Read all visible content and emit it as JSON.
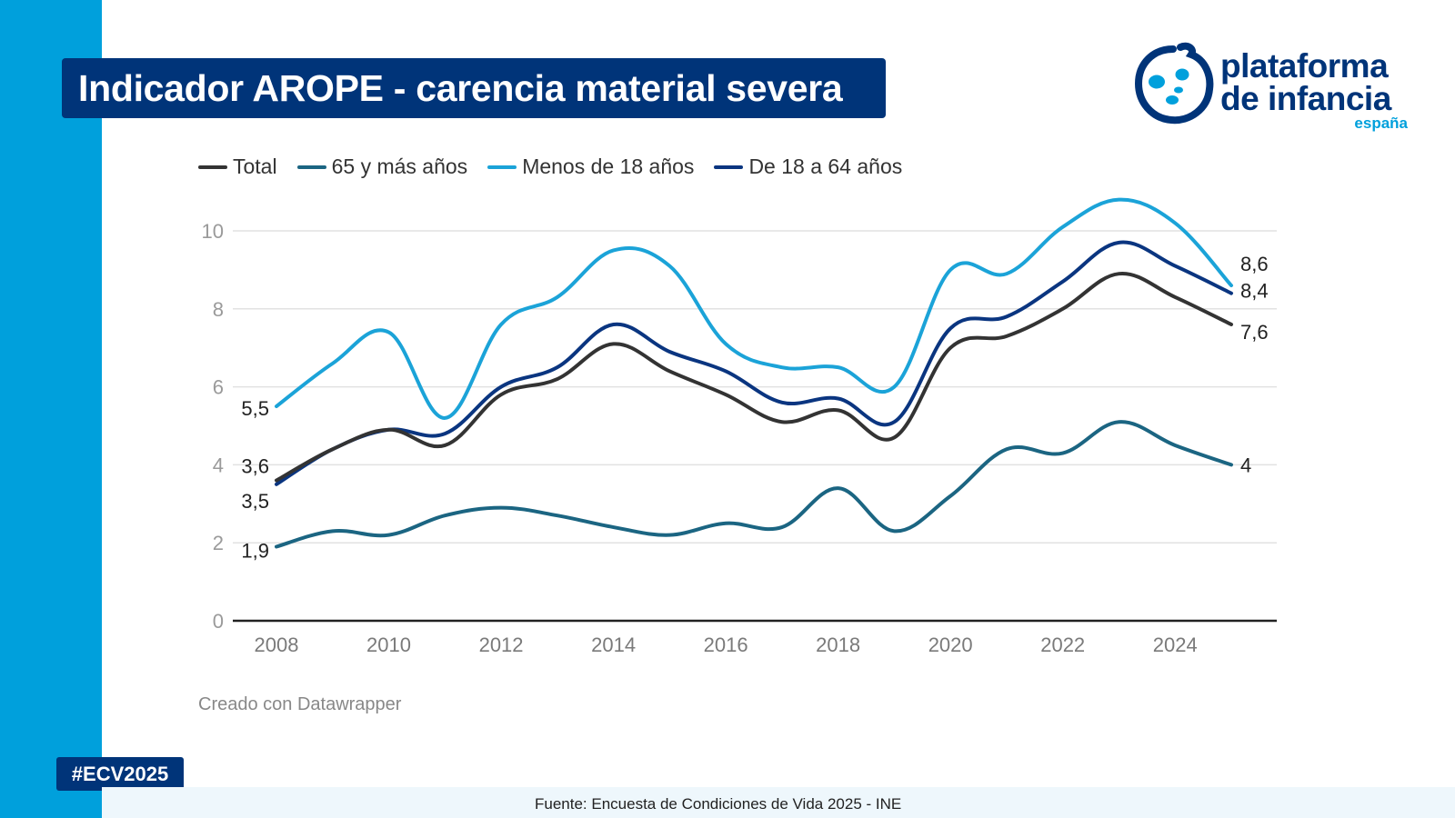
{
  "header": {
    "title": "Indicador AROPE - carencia material severa"
  },
  "logo": {
    "line1": "plataforma",
    "line2": "de infancia",
    "line3": "españa",
    "icon": "plataforma-infancia-logo-icon",
    "colors": {
      "navy": "#003479",
      "cyan": "#00a0dc"
    }
  },
  "footer": {
    "credit": "Creado con Datawrapper",
    "hashtag": "#ECV2025",
    "source": "Fuente: Encuesta de Condiciones de Vida 2025 - INE"
  },
  "chart_data": {
    "type": "line",
    "title": "Indicador AROPE - carencia material severa",
    "xlabel": "",
    "ylabel": "",
    "x": [
      2008,
      2009,
      2010,
      2011,
      2012,
      2013,
      2014,
      2015,
      2016,
      2017,
      2018,
      2019,
      2020,
      2021,
      2022,
      2023,
      2024,
      2025
    ],
    "xticks": [
      "2008",
      "2010",
      "2012",
      "2014",
      "2016",
      "2018",
      "2020",
      "2022",
      "2024"
    ],
    "yticks": [
      "0",
      "2",
      "4",
      "6",
      "8",
      "10"
    ],
    "ylim": [
      0,
      10
    ],
    "xlim": [
      2008,
      2025
    ],
    "grid": true,
    "legend_position": "top-left",
    "series": [
      {
        "name": "Total",
        "color": "#333333",
        "values": [
          3.6,
          4.4,
          4.9,
          4.5,
          5.8,
          6.2,
          7.1,
          6.4,
          5.8,
          5.1,
          5.4,
          4.7,
          7.0,
          7.3,
          8.0,
          8.9,
          8.3,
          7.6
        ],
        "start_label": "3,6",
        "end_label": "7,6"
      },
      {
        "name": "65 y más años",
        "color": "#1b6582",
        "values": [
          1.9,
          2.3,
          2.2,
          2.7,
          2.9,
          2.7,
          2.4,
          2.2,
          2.5,
          2.4,
          3.4,
          2.3,
          3.2,
          4.4,
          4.3,
          5.1,
          4.5,
          4.0
        ],
        "start_label": "1,9",
        "end_label": "4"
      },
      {
        "name": "Menos de 18 años",
        "color": "#1ba3d8",
        "values": [
          5.5,
          6.6,
          7.4,
          5.2,
          7.6,
          8.3,
          9.5,
          9.1,
          7.1,
          6.5,
          6.5,
          6.0,
          9.0,
          8.9,
          10.1,
          10.8,
          10.2,
          8.6
        ],
        "start_label": "5,5",
        "end_label": "8,6"
      },
      {
        "name": "De 18 a 64 años",
        "color": "#0a3580",
        "values": [
          3.5,
          4.4,
          4.9,
          4.8,
          6.0,
          6.5,
          7.6,
          6.9,
          6.4,
          5.6,
          5.7,
          5.1,
          7.5,
          7.8,
          8.7,
          9.7,
          9.1,
          8.4
        ],
        "start_label": "3,5",
        "end_label": "8,4"
      }
    ]
  }
}
